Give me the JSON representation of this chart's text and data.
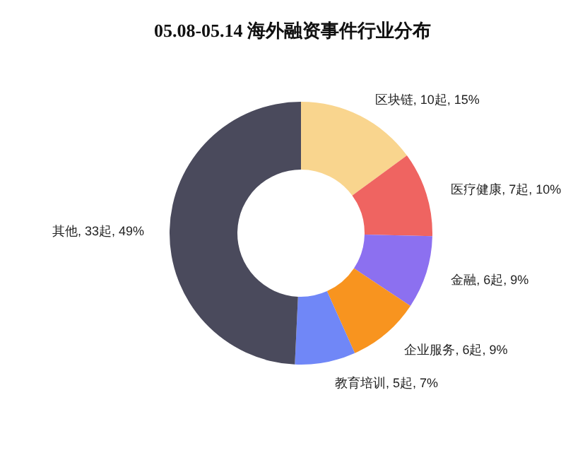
{
  "chart_data": {
    "type": "donut",
    "title": "05.08-05.14 海外融资事件行业分布",
    "categories": [
      "区块链",
      "医疗健康",
      "金融",
      "企业服务",
      "教育培训",
      "其他"
    ],
    "values": [
      10,
      7,
      6,
      6,
      5,
      33
    ],
    "value_labels": [
      "10起, 15%",
      "7起, 10%",
      "6起, 9%",
      "6起, 9%",
      "5起, 7%",
      "33起, 49%"
    ],
    "colors": [
      "#f9d58e",
      "#ef6461",
      "#8c70f0",
      "#f8941f",
      "#7087f7",
      "#4a4a5c"
    ]
  }
}
